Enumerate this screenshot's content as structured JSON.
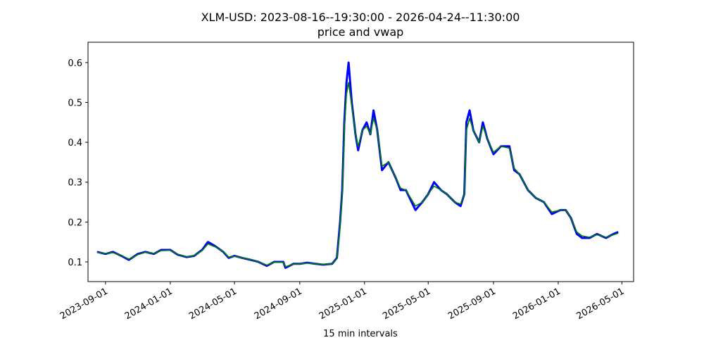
{
  "chart_data": {
    "type": "line",
    "title": "XLM-USD: 2023-08-16--19:30:00 - 2026-04-24--11:30:00",
    "subtitle": "price and vwap",
    "x_label": "15 min intervals",
    "x": [
      "2023-08-16",
      "2023-09-01",
      "2023-09-15",
      "2023-10-01",
      "2023-10-15",
      "2023-11-01",
      "2023-11-15",
      "2023-12-01",
      "2023-12-15",
      "2024-01-01",
      "2024-01-15",
      "2024-02-01",
      "2024-02-15",
      "2024-03-01",
      "2024-03-12",
      "2024-03-25",
      "2024-04-10",
      "2024-04-20",
      "2024-05-01",
      "2024-05-15",
      "2024-06-01",
      "2024-06-15",
      "2024-07-01",
      "2024-07-15",
      "2024-08-01",
      "2024-08-05",
      "2024-08-20",
      "2024-09-01",
      "2024-09-15",
      "2024-10-01",
      "2024-10-15",
      "2024-11-01",
      "2024-11-10",
      "2024-11-16",
      "2024-11-20",
      "2024-11-24",
      "2024-11-28",
      "2024-12-02",
      "2024-12-08",
      "2024-12-15",
      "2024-12-20",
      "2024-12-28",
      "2025-01-05",
      "2025-01-12",
      "2025-01-18",
      "2025-01-25",
      "2025-02-03",
      "2025-02-15",
      "2025-03-01",
      "2025-03-10",
      "2025-03-20",
      "2025-04-07",
      "2025-04-20",
      "2025-05-01",
      "2025-05-12",
      "2025-05-25",
      "2025-06-05",
      "2025-06-20",
      "2025-07-01",
      "2025-07-08",
      "2025-07-12",
      "2025-07-18",
      "2025-07-25",
      "2025-08-05",
      "2025-08-12",
      "2025-08-20",
      "2025-09-01",
      "2025-09-15",
      "2025-10-01",
      "2025-10-10",
      "2025-10-20",
      "2025-11-05",
      "2025-11-20",
      "2025-12-05",
      "2025-12-20",
      "2026-01-05",
      "2026-01-15",
      "2026-01-25",
      "2026-02-05",
      "2026-02-15",
      "2026-03-01",
      "2026-03-15",
      "2026-04-01",
      "2026-04-15",
      "2026-04-24"
    ],
    "series": [
      {
        "color": "#0000ff",
        "values": [
          0.125,
          0.12,
          0.125,
          0.115,
          0.105,
          0.12,
          0.125,
          0.12,
          0.13,
          0.13,
          0.118,
          0.112,
          0.115,
          0.13,
          0.15,
          0.14,
          0.125,
          0.11,
          0.115,
          0.11,
          0.105,
          0.1,
          0.09,
          0.1,
          0.1,
          0.085,
          0.095,
          0.095,
          0.098,
          0.095,
          0.093,
          0.095,
          0.11,
          0.2,
          0.28,
          0.45,
          0.55,
          0.6,
          0.5,
          0.42,
          0.38,
          0.43,
          0.45,
          0.42,
          0.48,
          0.43,
          0.33,
          0.35,
          0.31,
          0.28,
          0.28,
          0.23,
          0.25,
          0.27,
          0.3,
          0.28,
          0.27,
          0.25,
          0.24,
          0.27,
          0.45,
          0.48,
          0.43,
          0.4,
          0.45,
          0.41,
          0.37,
          0.39,
          0.39,
          0.33,
          0.32,
          0.28,
          0.26,
          0.25,
          0.22,
          0.23,
          0.23,
          0.21,
          0.17,
          0.16,
          0.16,
          0.17,
          0.16,
          0.17,
          0.175
        ]
      },
      {
        "color": "#008000",
        "values": [
          0.124,
          0.121,
          0.123,
          0.116,
          0.107,
          0.118,
          0.124,
          0.121,
          0.128,
          0.129,
          0.119,
          0.113,
          0.116,
          0.128,
          0.145,
          0.138,
          0.126,
          0.112,
          0.114,
          0.11,
          0.106,
          0.1,
          0.092,
          0.099,
          0.099,
          0.088,
          0.094,
          0.095,
          0.097,
          0.095,
          0.094,
          0.095,
          0.108,
          0.19,
          0.27,
          0.43,
          0.52,
          0.55,
          0.49,
          0.42,
          0.39,
          0.43,
          0.44,
          0.42,
          0.46,
          0.43,
          0.34,
          0.35,
          0.31,
          0.285,
          0.28,
          0.24,
          0.25,
          0.27,
          0.29,
          0.28,
          0.27,
          0.25,
          0.245,
          0.27,
          0.43,
          0.46,
          0.43,
          0.4,
          0.44,
          0.41,
          0.375,
          0.39,
          0.385,
          0.335,
          0.32,
          0.28,
          0.26,
          0.25,
          0.225,
          0.23,
          0.23,
          0.21,
          0.175,
          0.165,
          0.162,
          0.168,
          0.162,
          0.168,
          0.172
        ]
      }
    ],
    "xlim": [
      "2023-07-30",
      "2026-05-23"
    ],
    "xticks": [
      "2023-09-01",
      "2024-01-01",
      "2024-05-01",
      "2024-09-01",
      "2025-01-01",
      "2025-05-01",
      "2025-09-01",
      "2026-01-01",
      "2026-05-01"
    ],
    "ylim": [
      0.0505,
      0.651
    ],
    "yticks": [
      0.1,
      0.2,
      0.3,
      0.4,
      0.5,
      0.6
    ]
  }
}
